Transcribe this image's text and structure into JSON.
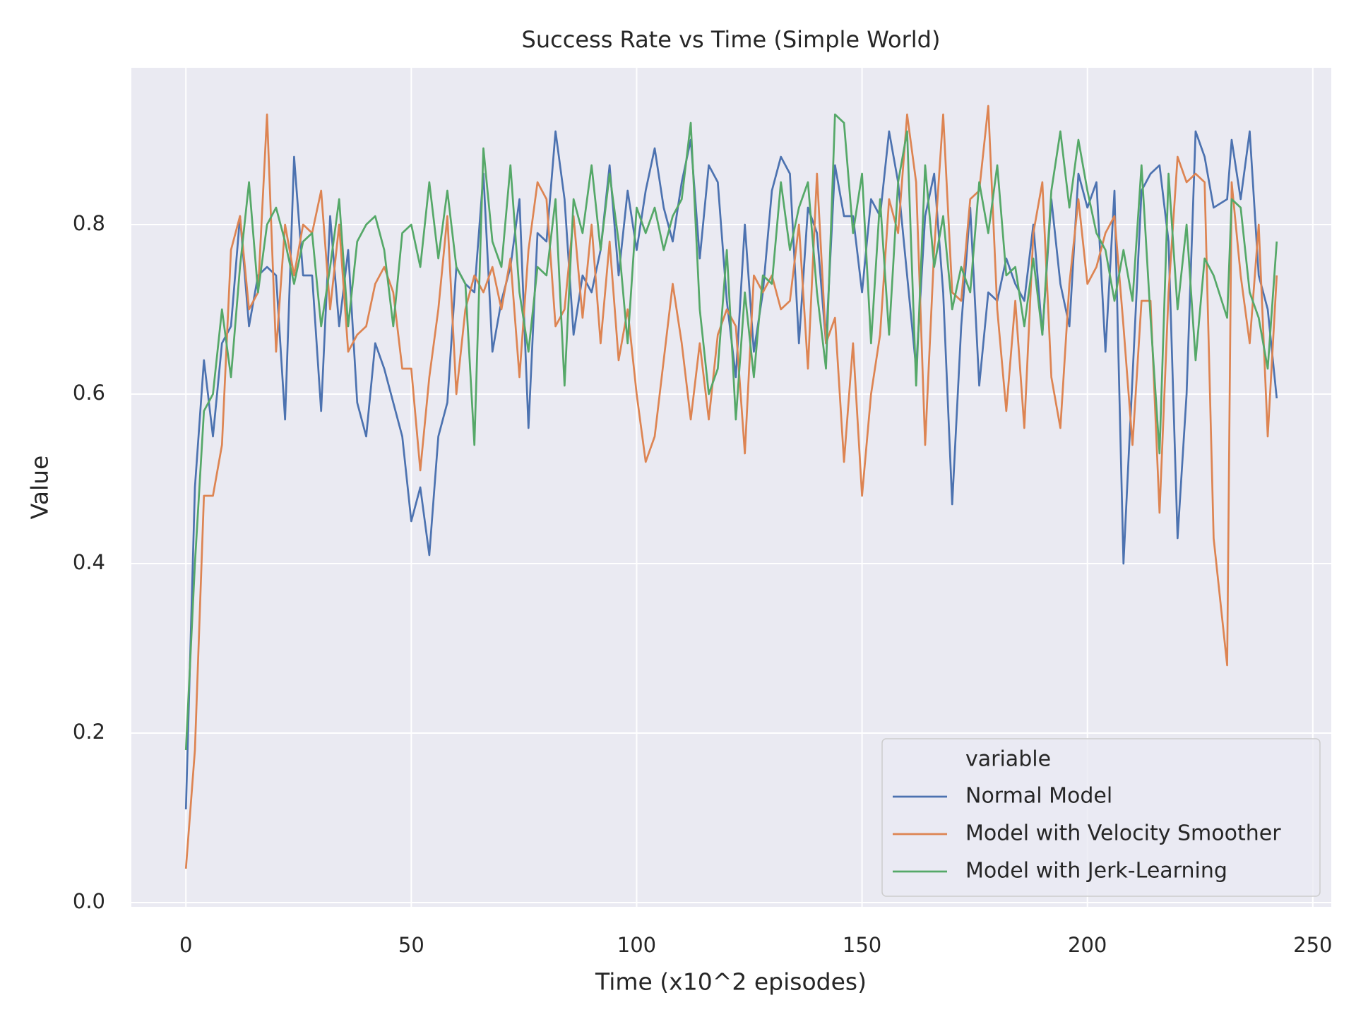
{
  "chart_data": {
    "type": "line",
    "title": "Success Rate vs Time (Simple World)",
    "xlabel": "Time (x10^2 episodes)",
    "ylabel": "Value",
    "x": [
      0,
      2,
      4,
      6,
      8,
      10,
      12,
      14,
      16,
      18,
      20,
      22,
      24,
      26,
      28,
      30,
      32,
      34,
      36,
      38,
      40,
      42,
      44,
      46,
      48,
      50,
      52,
      54,
      56,
      58,
      60,
      62,
      64,
      66,
      68,
      70,
      72,
      74,
      76,
      78,
      80,
      82,
      84,
      86,
      88,
      90,
      92,
      94,
      96,
      98,
      100,
      102,
      104,
      106,
      108,
      110,
      112,
      114,
      116,
      118,
      120,
      122,
      124,
      126,
      128,
      130,
      132,
      134,
      136,
      138,
      140,
      142,
      144,
      146,
      148,
      150,
      152,
      154,
      156,
      158,
      160,
      162,
      164,
      166,
      168,
      170,
      172,
      174,
      176,
      178,
      180,
      182,
      184,
      186,
      188,
      190,
      192,
      194,
      196,
      198,
      200,
      202,
      204,
      206,
      208,
      210,
      212,
      214,
      216,
      218,
      220,
      222,
      224,
      226,
      228,
      231,
      232,
      234,
      236,
      238,
      240,
      242
    ],
    "series": [
      {
        "name": "Normal Model",
        "color": "#4c72b0",
        "values": [
          0.11,
          0.49,
          0.64,
          0.55,
          0.66,
          0.68,
          0.81,
          0.68,
          0.74,
          0.75,
          0.74,
          0.57,
          0.88,
          0.74,
          0.74,
          0.58,
          0.81,
          0.68,
          0.77,
          0.59,
          0.55,
          0.66,
          0.63,
          0.59,
          0.55,
          0.45,
          0.49,
          0.41,
          0.55,
          0.59,
          0.75,
          0.73,
          0.72,
          0.86,
          0.65,
          0.71,
          0.75,
          0.83,
          0.56,
          0.79,
          0.78,
          0.91,
          0.83,
          0.67,
          0.74,
          0.72,
          0.77,
          0.87,
          0.74,
          0.84,
          0.77,
          0.84,
          0.89,
          0.82,
          0.78,
          0.85,
          0.9,
          0.76,
          0.87,
          0.85,
          0.71,
          0.62,
          0.8,
          0.65,
          0.72,
          0.84,
          0.88,
          0.86,
          0.66,
          0.82,
          0.79,
          0.66,
          0.87,
          0.81,
          0.81,
          0.72,
          0.83,
          0.81,
          0.91,
          0.85,
          0.74,
          0.63,
          0.81,
          0.86,
          0.72,
          0.47,
          0.68,
          0.82,
          0.61,
          0.72,
          0.71,
          0.76,
          0.73,
          0.71,
          0.8,
          0.67,
          0.83,
          0.73,
          0.68,
          0.86,
          0.82,
          0.85,
          0.65,
          0.84,
          0.4,
          0.62,
          0.84,
          0.86,
          0.87,
          0.78,
          0.43,
          0.6,
          0.91,
          0.88,
          0.82,
          0.83,
          0.9,
          0.83,
          0.91,
          0.74,
          0.7,
          0.595
        ]
      },
      {
        "name": "Model with Velocity Smoother",
        "color": "#dd8452",
        "values": [
          0.04,
          0.18,
          0.48,
          0.48,
          0.54,
          0.77,
          0.81,
          0.7,
          0.72,
          0.93,
          0.65,
          0.8,
          0.74,
          0.8,
          0.79,
          0.84,
          0.7,
          0.8,
          0.65,
          0.67,
          0.68,
          0.73,
          0.75,
          0.72,
          0.63,
          0.63,
          0.51,
          0.62,
          0.7,
          0.81,
          0.6,
          0.7,
          0.74,
          0.72,
          0.75,
          0.7,
          0.76,
          0.62,
          0.77,
          0.85,
          0.83,
          0.68,
          0.7,
          0.81,
          0.69,
          0.8,
          0.66,
          0.78,
          0.64,
          0.7,
          0.6,
          0.52,
          0.55,
          0.64,
          0.73,
          0.66,
          0.57,
          0.66,
          0.57,
          0.67,
          0.7,
          0.68,
          0.53,
          0.74,
          0.72,
          0.74,
          0.7,
          0.71,
          0.8,
          0.63,
          0.86,
          0.66,
          0.69,
          0.52,
          0.66,
          0.48,
          0.6,
          0.67,
          0.83,
          0.79,
          0.93,
          0.85,
          0.54,
          0.77,
          0.93,
          0.72,
          0.71,
          0.83,
          0.84,
          0.94,
          0.7,
          0.58,
          0.71,
          0.56,
          0.79,
          0.85,
          0.62,
          0.56,
          0.73,
          0.83,
          0.73,
          0.75,
          0.79,
          0.81,
          0.68,
          0.54,
          0.71,
          0.71,
          0.46,
          0.72,
          0.88,
          0.85,
          0.86,
          0.85,
          0.43,
          0.28,
          0.85,
          0.74,
          0.66,
          0.8,
          0.55,
          0.74
        ]
      },
      {
        "name": "Model with Jerk-Learning",
        "color": "#55a868",
        "values": [
          0.18,
          0.4,
          0.58,
          0.6,
          0.7,
          0.62,
          0.75,
          0.85,
          0.72,
          0.8,
          0.82,
          0.78,
          0.73,
          0.78,
          0.79,
          0.68,
          0.75,
          0.83,
          0.68,
          0.78,
          0.8,
          0.81,
          0.77,
          0.68,
          0.79,
          0.8,
          0.75,
          0.85,
          0.76,
          0.84,
          0.75,
          0.73,
          0.54,
          0.89,
          0.78,
          0.75,
          0.87,
          0.72,
          0.65,
          0.75,
          0.74,
          0.83,
          0.61,
          0.83,
          0.79,
          0.87,
          0.77,
          0.86,
          0.78,
          0.66,
          0.82,
          0.79,
          0.82,
          0.77,
          0.81,
          0.83,
          0.92,
          0.7,
          0.6,
          0.63,
          0.77,
          0.57,
          0.72,
          0.62,
          0.74,
          0.73,
          0.85,
          0.77,
          0.82,
          0.85,
          0.72,
          0.63,
          0.93,
          0.92,
          0.79,
          0.86,
          0.66,
          0.83,
          0.67,
          0.85,
          0.91,
          0.61,
          0.87,
          0.75,
          0.81,
          0.7,
          0.75,
          0.72,
          0.85,
          0.79,
          0.87,
          0.74,
          0.75,
          0.68,
          0.76,
          0.67,
          0.84,
          0.91,
          0.82,
          0.9,
          0.84,
          0.79,
          0.77,
          0.71,
          0.77,
          0.71,
          0.87,
          0.69,
          0.53,
          0.86,
          0.7,
          0.8,
          0.64,
          0.76,
          0.74,
          0.69,
          0.83,
          0.82,
          0.72,
          0.69,
          0.63,
          0.78
        ]
      }
    ],
    "xlim": [
      -12.1,
      254.1
    ],
    "ylim": [
      -0.005,
      0.985
    ],
    "xticks": [
      0,
      50,
      100,
      150,
      200,
      250
    ],
    "yticks": [
      {
        "value": 0,
        "label": "0.0"
      },
      0.2,
      0.4,
      0.6,
      0.8
    ],
    "grid": true,
    "legend": {
      "title": "variable",
      "loc": "lower right"
    }
  }
}
